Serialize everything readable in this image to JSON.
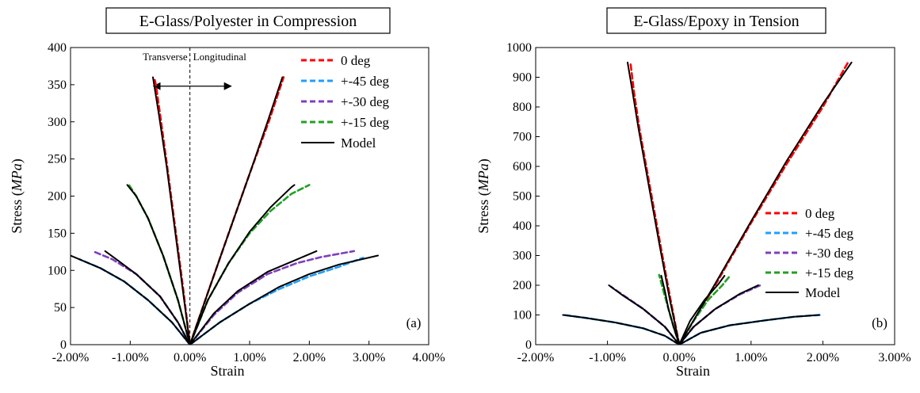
{
  "colors": {
    "0 deg": "#ff0000",
    "+-45 deg": "#1f9fff",
    "+-30 deg": "#7f3fbf",
    "+-15 deg": "#22a022",
    "Model": "#000000"
  },
  "chart_data": [
    {
      "type": "line",
      "title": "E-Glass/Polyester in Compression",
      "xlabel": "Strain",
      "ylabel_prefix": "Stress (",
      "ylabel_unit": "MPa",
      "ylabel_suffix": ")",
      "xlim": [
        -0.02,
        0.04
      ],
      "ylim": [
        0,
        400
      ],
      "xticks": [
        -0.02,
        -0.01,
        0,
        0.01,
        0.02,
        0.03,
        0.04
      ],
      "xtick_labels": [
        "-2.00%",
        "-1.00%",
        "0.00%",
        "1.00%",
        "2.00%",
        "3.00%",
        "4.00%"
      ],
      "yticks": [
        0,
        50,
        100,
        150,
        200,
        250,
        300,
        350,
        400
      ],
      "ytick_labels": [
        "0",
        "50",
        "100",
        "150",
        "200",
        "250",
        "300",
        "350",
        "400"
      ],
      "panel_label": "(a)",
      "legend_position": "top-right",
      "annotation": {
        "left_text": "Transverse",
        "right_text": "Longitudinal",
        "arrow_y": 348,
        "divider_x": 0
      },
      "series": [
        {
          "name": "0 deg",
          "style": "dashed",
          "branches": [
            [
              [
                0,
                0
              ],
              [
                -0.0012,
                80
              ],
              [
                -0.0025,
                160
              ],
              [
                -0.0038,
                240
              ],
              [
                -0.005,
                310
              ],
              [
                -0.0057,
                350
              ],
              [
                -0.006,
                360
              ]
            ],
            [
              [
                0,
                0
              ],
              [
                0.003,
                70
              ],
              [
                0.0065,
                150
              ],
              [
                0.01,
                230
              ],
              [
                0.0132,
                300
              ],
              [
                0.0157,
                360
              ]
            ]
          ]
        },
        {
          "name": "+-45 deg",
          "style": "dashed",
          "branches": [
            [
              [
                0,
                0
              ],
              [
                -0.003,
                30
              ],
              [
                -0.007,
                60
              ],
              [
                -0.011,
                85
              ],
              [
                -0.015,
                103
              ],
              [
                -0.0185,
                115
              ]
            ],
            [
              [
                0,
                0
              ],
              [
                0.005,
                30
              ],
              [
                0.01,
                55
              ],
              [
                0.015,
                75
              ],
              [
                0.02,
                92
              ],
              [
                0.025,
                105
              ],
              [
                0.029,
                117
              ]
            ]
          ]
        },
        {
          "name": "+-30 deg",
          "style": "dashed",
          "branches": [
            [
              [
                0,
                0
              ],
              [
                -0.002,
                30
              ],
              [
                -0.005,
                65
              ],
              [
                -0.009,
                95
              ],
              [
                -0.013,
                115
              ],
              [
                -0.016,
                125
              ]
            ],
            [
              [
                0,
                0
              ],
              [
                0.004,
                40
              ],
              [
                0.008,
                70
              ],
              [
                0.013,
                95
              ],
              [
                0.018,
                110
              ],
              [
                0.022,
                118
              ],
              [
                0.0275,
                126
              ]
            ]
          ]
        },
        {
          "name": "+-15 deg",
          "style": "dashed",
          "branches": [
            [
              [
                0,
                0
              ],
              [
                -0.002,
                60
              ],
              [
                -0.0045,
                120
              ],
              [
                -0.007,
                170
              ],
              [
                -0.009,
                200
              ],
              [
                -0.0102,
                215
              ]
            ],
            [
              [
                0,
                0
              ],
              [
                0.003,
                60
              ],
              [
                0.0065,
                110
              ],
              [
                0.01,
                150
              ],
              [
                0.0135,
                180
              ],
              [
                0.017,
                203
              ],
              [
                0.02,
                215
              ]
            ]
          ]
        },
        {
          "name": "Model",
          "style": "solid",
          "branches": [
            [
              [
                0,
                0
              ],
              [
                -0.0013,
                80
              ],
              [
                -0.0026,
                160
              ],
              [
                -0.0039,
                240
              ],
              [
                -0.0052,
                310
              ],
              [
                -0.0062,
                360
              ]
            ],
            [
              [
                0,
                0
              ],
              [
                0.003,
                70
              ],
              [
                0.0065,
                150
              ],
              [
                0.01,
                230
              ],
              [
                0.013,
                300
              ],
              [
                0.0155,
                360
              ]
            ],
            [
              [
                0,
                0
              ],
              [
                -0.002,
                60
              ],
              [
                -0.0045,
                120
              ],
              [
                -0.007,
                170
              ],
              [
                -0.009,
                200
              ],
              [
                -0.0105,
                215
              ]
            ],
            [
              [
                0,
                0
              ],
              [
                0.003,
                60
              ],
              [
                0.0065,
                110
              ],
              [
                0.01,
                152
              ],
              [
                0.0135,
                185
              ],
              [
                0.017,
                212
              ],
              [
                0.0175,
                215
              ]
            ],
            [
              [
                0,
                0
              ],
              [
                -0.002,
                30
              ],
              [
                -0.005,
                65
              ],
              [
                -0.009,
                95
              ],
              [
                -0.012,
                113
              ],
              [
                -0.0142,
                126
              ]
            ],
            [
              [
                0,
                0
              ],
              [
                0.004,
                42
              ],
              [
                0.008,
                72
              ],
              [
                0.013,
                98
              ],
              [
                0.018,
                115
              ],
              [
                0.0212,
                126
              ]
            ],
            [
              [
                0,
                0
              ],
              [
                -0.003,
                30
              ],
              [
                -0.007,
                60
              ],
              [
                -0.011,
                85
              ],
              [
                -0.015,
                103
              ],
              [
                -0.02,
                120
              ]
            ],
            [
              [
                0,
                0
              ],
              [
                0.005,
                30
              ],
              [
                0.01,
                55
              ],
              [
                0.015,
                78
              ],
              [
                0.02,
                95
              ],
              [
                0.025,
                108
              ],
              [
                0.0315,
                120
              ]
            ]
          ]
        }
      ]
    },
    {
      "type": "line",
      "title": "E-Glass/Epoxy in Tension",
      "xlabel": "Strain",
      "ylabel_prefix": "Stress (",
      "ylabel_unit": "MPa",
      "ylabel_suffix": ")",
      "xlim": [
        -0.02,
        0.03
      ],
      "ylim": [
        0,
        1000
      ],
      "xticks": [
        -0.02,
        -0.01,
        0,
        0.01,
        0.02,
        0.03
      ],
      "xtick_labels": [
        "-2.00%",
        "-1.00%",
        "0.00%",
        "1.00%",
        "2.00%",
        "3.00%"
      ],
      "yticks": [
        0,
        100,
        200,
        300,
        400,
        500,
        600,
        700,
        800,
        900,
        1000
      ],
      "ytick_labels": [
        "0",
        "100",
        "200",
        "300",
        "400",
        "500",
        "600",
        "700",
        "800",
        "900",
        "1000"
      ],
      "panel_label": "(b)",
      "legend_position": "center-right",
      "series": [
        {
          "name": "0 deg",
          "style": "dashed",
          "branches": [
            [
              [
                0,
                0
              ],
              [
                -0.0012,
                150
              ],
              [
                -0.0025,
                320
              ],
              [
                -0.004,
                520
              ],
              [
                -0.0055,
                720
              ],
              [
                -0.0063,
                850
              ],
              [
                -0.0068,
                950
              ]
            ],
            [
              [
                0,
                0
              ],
              [
                0.005,
                200
              ],
              [
                0.01,
                410
              ],
              [
                0.015,
                610
              ],
              [
                0.02,
                800
              ],
              [
                0.0235,
                950
              ]
            ]
          ]
        },
        {
          "name": "+-45 deg",
          "style": "dashed",
          "branches": [
            [
              [
                0,
                0
              ],
              [
                -0.002,
                30
              ],
              [
                -0.005,
                55
              ],
              [
                -0.009,
                75
              ],
              [
                -0.013,
                90
              ],
              [
                -0.016,
                100
              ]
            ],
            [
              [
                0,
                0
              ],
              [
                0.003,
                40
              ],
              [
                0.007,
                65
              ],
              [
                0.012,
                82
              ],
              [
                0.016,
                94
              ],
              [
                0.0197,
                100
              ]
            ]
          ]
        },
        {
          "name": "+-30 deg",
          "style": "dashed",
          "branches": [
            [
              [
                0,
                0
              ],
              [
                -0.002,
                60
              ],
              [
                -0.005,
                120
              ],
              [
                -0.008,
                170
              ],
              [
                -0.0095,
                195
              ]
            ],
            [
              [
                0,
                0
              ],
              [
                0.002,
                60
              ],
              [
                0.005,
                120
              ],
              [
                0.0085,
                170
              ],
              [
                0.0113,
                200
              ]
            ]
          ]
        },
        {
          "name": "+-15 deg",
          "style": "dashed",
          "branches": [
            [
              [
                0,
                0
              ],
              [
                -0.0008,
                60
              ],
              [
                -0.0015,
                120
              ],
              [
                -0.0022,
                180
              ],
              [
                -0.0028,
                235
              ]
            ],
            [
              [
                0,
                0
              ],
              [
                0.002,
                80
              ],
              [
                0.004,
                150
              ],
              [
                0.006,
                200
              ],
              [
                0.007,
                230
              ]
            ]
          ]
        },
        {
          "name": "Model",
          "style": "solid",
          "branches": [
            [
              [
                0,
                0
              ],
              [
                -0.0013,
                150
              ],
              [
                -0.0027,
                330
              ],
              [
                -0.0042,
                530
              ],
              [
                -0.0057,
                730
              ],
              [
                -0.0065,
                850
              ],
              [
                -0.0072,
                950
              ]
            ],
            [
              [
                0,
                0
              ],
              [
                0.005,
                205
              ],
              [
                0.01,
                415
              ],
              [
                0.015,
                620
              ],
              [
                0.02,
                810
              ],
              [
                0.024,
                950
              ]
            ],
            [
              [
                0,
                0
              ],
              [
                -0.002,
                60
              ],
              [
                -0.005,
                120
              ],
              [
                -0.008,
                168
              ],
              [
                -0.0098,
                200
              ]
            ],
            [
              [
                0,
                0
              ],
              [
                0.002,
                60
              ],
              [
                0.005,
                120
              ],
              [
                0.0085,
                172
              ],
              [
                0.011,
                200
              ]
            ],
            [
              [
                0,
                0
              ],
              [
                -0.0008,
                60
              ],
              [
                -0.0015,
                120
              ],
              [
                -0.002,
                180
              ],
              [
                -0.0025,
                232
              ]
            ],
            [
              [
                0,
                0
              ],
              [
                0.0015,
                80
              ],
              [
                0.0035,
                150
              ],
              [
                0.0055,
                205
              ],
              [
                0.0063,
                232
              ]
            ],
            [
              [
                0,
                0
              ],
              [
                -0.002,
                30
              ],
              [
                -0.005,
                55
              ],
              [
                -0.009,
                75
              ],
              [
                -0.013,
                90
              ],
              [
                -0.0162,
                100
              ]
            ],
            [
              [
                0,
                0
              ],
              [
                0.003,
                40
              ],
              [
                0.007,
                65
              ],
              [
                0.012,
                82
              ],
              [
                0.016,
                94
              ],
              [
                0.0195,
                100
              ]
            ]
          ]
        }
      ]
    }
  ]
}
